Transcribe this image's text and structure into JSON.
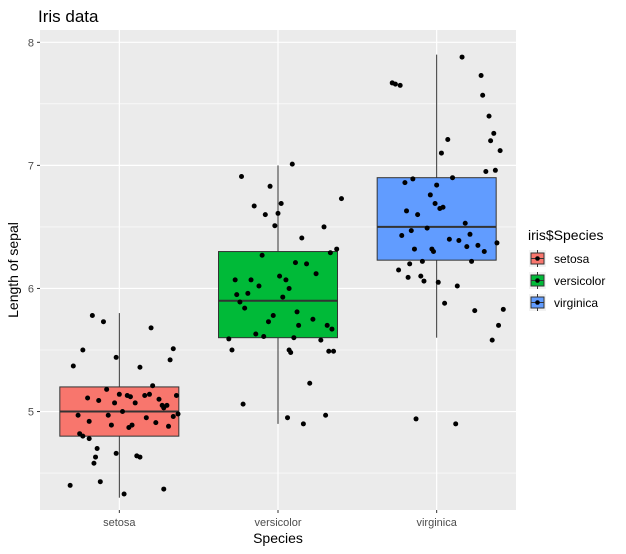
{
  "chart_data": {
    "type": "boxplot",
    "title": "Iris data",
    "xlabel": "Species",
    "ylabel": "Length of sepal",
    "ylim": [
      4.2,
      8.1
    ],
    "yticks": [
      5,
      6,
      7,
      8
    ],
    "grid": true,
    "legend": {
      "title": "iris$Species",
      "placement": "right"
    },
    "categories": [
      "setosa",
      "versicolor",
      "virginica"
    ],
    "colors": [
      "#F8766D",
      "#00BA38",
      "#619CFF"
    ],
    "boxes": [
      {
        "name": "setosa",
        "min": 4.3,
        "q1": 4.8,
        "median": 5.0,
        "q3": 5.2,
        "max": 5.8
      },
      {
        "name": "versicolor",
        "min": 4.9,
        "q1": 5.6,
        "median": 5.9,
        "q3": 6.3,
        "max": 7.0
      },
      {
        "name": "virginica",
        "min": 5.6,
        "q1": 6.23,
        "median": 6.5,
        "q3": 6.9,
        "max": 7.9
      }
    ],
    "points": [
      [
        {
          "x": -0.31,
          "y": 4.4
        },
        {
          "x": -0.29,
          "y": 5.37
        },
        {
          "x": -0.26,
          "y": 4.97
        },
        {
          "x": -0.25,
          "y": 4.82
        },
        {
          "x": -0.23,
          "y": 4.8
        },
        {
          "x": -0.23,
          "y": 5.5
        },
        {
          "x": -0.2,
          "y": 5.11
        },
        {
          "x": -0.19,
          "y": 4.78
        },
        {
          "x": -0.19,
          "y": 4.92
        },
        {
          "x": -0.17,
          "y": 5.78
        },
        {
          "x": -0.16,
          "y": 4.58
        },
        {
          "x": -0.15,
          "y": 4.63
        },
        {
          "x": -0.14,
          "y": 4.7
        },
        {
          "x": -0.13,
          "y": 5.09
        },
        {
          "x": -0.12,
          "y": 4.43
        },
        {
          "x": -0.1,
          "y": 5.73
        },
        {
          "x": -0.08,
          "y": 5.18
        },
        {
          "x": -0.07,
          "y": 4.97
        },
        {
          "x": -0.05,
          "y": 4.89
        },
        {
          "x": -0.03,
          "y": 5.07
        },
        {
          "x": -0.02,
          "y": 4.66
        },
        {
          "x": -0.02,
          "y": 5.44
        },
        {
          "x": 0.0,
          "y": 5.14
        },
        {
          "x": 0.02,
          "y": 5.0
        },
        {
          "x": 0.03,
          "y": 4.33
        },
        {
          "x": 0.05,
          "y": 5.13
        },
        {
          "x": 0.06,
          "y": 4.87
        },
        {
          "x": 0.07,
          "y": 5.12
        },
        {
          "x": 0.08,
          "y": 4.89
        },
        {
          "x": 0.1,
          "y": 5.07
        },
        {
          "x": 0.11,
          "y": 4.64
        },
        {
          "x": 0.13,
          "y": 4.63
        },
        {
          "x": 0.13,
          "y": 5.36
        },
        {
          "x": 0.16,
          "y": 5.13
        },
        {
          "x": 0.17,
          "y": 4.95
        },
        {
          "x": 0.19,
          "y": 5.14
        },
        {
          "x": 0.2,
          "y": 5.68
        },
        {
          "x": 0.21,
          "y": 5.21
        },
        {
          "x": 0.23,
          "y": 4.91
        },
        {
          "x": 0.25,
          "y": 5.1
        },
        {
          "x": 0.27,
          "y": 5.05
        },
        {
          "x": 0.28,
          "y": 5.03
        },
        {
          "x": 0.28,
          "y": 4.37
        },
        {
          "x": 0.3,
          "y": 5.05
        },
        {
          "x": 0.31,
          "y": 4.88
        },
        {
          "x": 0.32,
          "y": 5.42
        },
        {
          "x": 0.34,
          "y": 5.51
        },
        {
          "x": 0.34,
          "y": 4.96
        },
        {
          "x": 0.36,
          "y": 5.13
        },
        {
          "x": 0.37,
          "y": 4.98
        }
      ],
      [
        {
          "x": -0.31,
          "y": 5.59
        },
        {
          "x": -0.29,
          "y": 5.5
        },
        {
          "x": -0.27,
          "y": 6.07
        },
        {
          "x": -0.26,
          "y": 5.95
        },
        {
          "x": -0.24,
          "y": 5.89
        },
        {
          "x": -0.23,
          "y": 6.91
        },
        {
          "x": -0.22,
          "y": 5.06
        },
        {
          "x": -0.21,
          "y": 5.84
        },
        {
          "x": -0.19,
          "y": 5.96
        },
        {
          "x": -0.17,
          "y": 6.07
        },
        {
          "x": -0.15,
          "y": 6.67
        },
        {
          "x": -0.14,
          "y": 5.63
        },
        {
          "x": -0.12,
          "y": 6.02
        },
        {
          "x": -0.1,
          "y": 6.27
        },
        {
          "x": -0.09,
          "y": 5.61
        },
        {
          "x": -0.08,
          "y": 6.6
        },
        {
          "x": -0.06,
          "y": 5.73
        },
        {
          "x": -0.05,
          "y": 6.83
        },
        {
          "x": -0.03,
          "y": 5.78
        },
        {
          "x": -0.02,
          "y": 6.51
        },
        {
          "x": 0.0,
          "y": 6.61
        },
        {
          "x": 0.01,
          "y": 6.1
        },
        {
          "x": 0.02,
          "y": 6.69
        },
        {
          "x": 0.03,
          "y": 5.93
        },
        {
          "x": 0.05,
          "y": 6.07
        },
        {
          "x": 0.06,
          "y": 4.95
        },
        {
          "x": 0.07,
          "y": 6.0
        },
        {
          "x": 0.07,
          "y": 5.5
        },
        {
          "x": 0.08,
          "y": 5.48
        },
        {
          "x": 0.09,
          "y": 7.01
        },
        {
          "x": 0.1,
          "y": 5.6
        },
        {
          "x": 0.11,
          "y": 6.21
        },
        {
          "x": 0.12,
          "y": 5.81
        },
        {
          "x": 0.13,
          "y": 5.7
        },
        {
          "x": 0.15,
          "y": 6.41
        },
        {
          "x": 0.16,
          "y": 4.9
        },
        {
          "x": 0.18,
          "y": 6.2
        },
        {
          "x": 0.2,
          "y": 5.23
        },
        {
          "x": 0.22,
          "y": 5.75
        },
        {
          "x": 0.24,
          "y": 6.12
        },
        {
          "x": 0.27,
          "y": 5.58
        },
        {
          "x": 0.29,
          "y": 6.5
        },
        {
          "x": 0.3,
          "y": 4.97
        },
        {
          "x": 0.31,
          "y": 5.7
        },
        {
          "x": 0.32,
          "y": 5.49
        },
        {
          "x": 0.33,
          "y": 6.29
        },
        {
          "x": 0.34,
          "y": 5.67
        },
        {
          "x": 0.35,
          "y": 5.49
        },
        {
          "x": 0.37,
          "y": 6.32
        },
        {
          "x": 0.4,
          "y": 6.73
        }
      ],
      [
        {
          "x": -0.28,
          "y": 7.67
        },
        {
          "x": -0.26,
          "y": 7.66
        },
        {
          "x": -0.24,
          "y": 6.15
        },
        {
          "x": -0.23,
          "y": 7.65
        },
        {
          "x": -0.22,
          "y": 6.43
        },
        {
          "x": -0.2,
          "y": 6.86
        },
        {
          "x": -0.19,
          "y": 6.63
        },
        {
          "x": -0.18,
          "y": 6.09
        },
        {
          "x": -0.17,
          "y": 6.2
        },
        {
          "x": -0.16,
          "y": 6.47
        },
        {
          "x": -0.15,
          "y": 6.89
        },
        {
          "x": -0.14,
          "y": 6.32
        },
        {
          "x": -0.13,
          "y": 4.94
        },
        {
          "x": -0.12,
          "y": 6.6
        },
        {
          "x": -0.1,
          "y": 6.1
        },
        {
          "x": -0.09,
          "y": 6.22
        },
        {
          "x": -0.08,
          "y": 6.06
        },
        {
          "x": -0.06,
          "y": 6.49
        },
        {
          "x": -0.04,
          "y": 6.76
        },
        {
          "x": -0.03,
          "y": 6.32
        },
        {
          "x": -0.02,
          "y": 6.3
        },
        {
          "x": -0.01,
          "y": 6.69
        },
        {
          "x": 0.0,
          "y": 6.84
        },
        {
          "x": 0.01,
          "y": 6.05
        },
        {
          "x": 0.02,
          "y": 6.65
        },
        {
          "x": 0.03,
          "y": 7.1
        },
        {
          "x": 0.04,
          "y": 6.66
        },
        {
          "x": 0.05,
          "y": 5.88
        },
        {
          "x": 0.07,
          "y": 7.21
        },
        {
          "x": 0.08,
          "y": 6.4
        },
        {
          "x": 0.1,
          "y": 6.9
        },
        {
          "x": 0.12,
          "y": 4.9
        },
        {
          "x": 0.13,
          "y": 6.02
        },
        {
          "x": 0.14,
          "y": 6.39
        },
        {
          "x": 0.16,
          "y": 7.88
        },
        {
          "x": 0.18,
          "y": 6.53
        },
        {
          "x": 0.19,
          "y": 6.34
        },
        {
          "x": 0.21,
          "y": 6.44
        },
        {
          "x": 0.22,
          "y": 6.22
        },
        {
          "x": 0.24,
          "y": 5.82
        },
        {
          "x": 0.26,
          "y": 6.35
        },
        {
          "x": 0.28,
          "y": 7.73
        },
        {
          "x": 0.29,
          "y": 7.57
        },
        {
          "x": 0.3,
          "y": 6.3
        },
        {
          "x": 0.31,
          "y": 6.95
        },
        {
          "x": 0.33,
          "y": 7.4
        },
        {
          "x": 0.34,
          "y": 7.2
        },
        {
          "x": 0.35,
          "y": 5.58
        },
        {
          "x": 0.36,
          "y": 7.26
        },
        {
          "x": 0.37,
          "y": 6.96
        },
        {
          "x": 0.38,
          "y": 6.37
        },
        {
          "x": 0.39,
          "y": 5.7
        },
        {
          "x": 0.4,
          "y": 7.12
        },
        {
          "x": 0.42,
          "y": 5.83
        }
      ]
    ]
  }
}
